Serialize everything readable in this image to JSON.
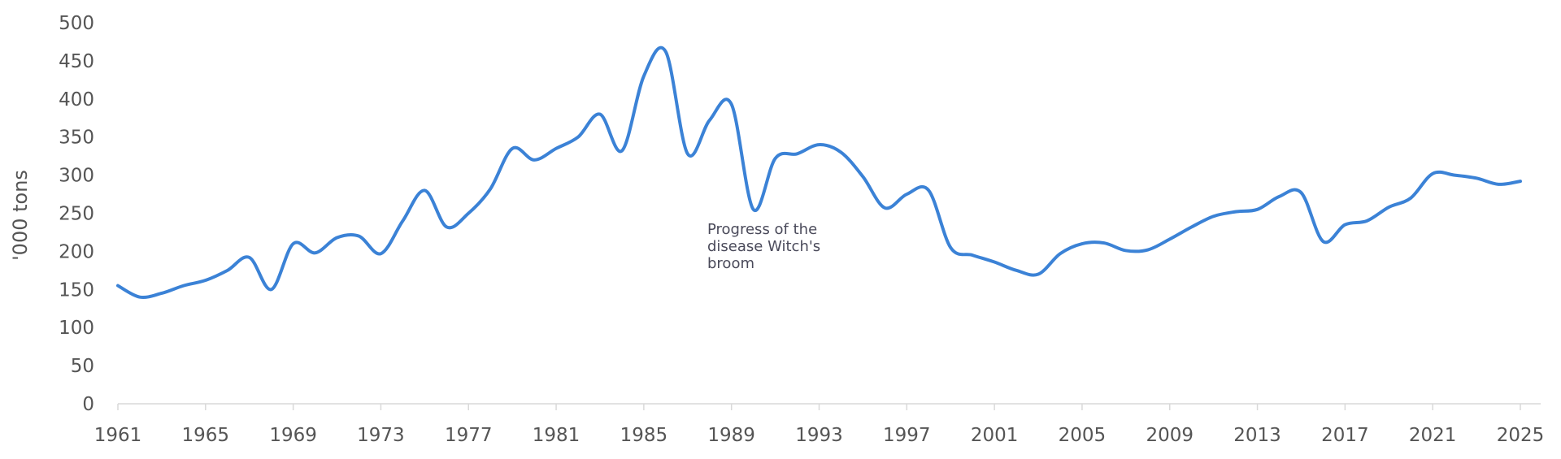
{
  "chart_data": {
    "type": "line",
    "title": "",
    "xlabel": "",
    "ylabel": "'000 tons",
    "xlim": [
      1961,
      2025
    ],
    "ylim": [
      0,
      500
    ],
    "x_ticks": [
      "1961",
      "1965",
      "1969",
      "1973",
      "1977",
      "1981",
      "1985",
      "1989",
      "1993",
      "1997",
      "2001",
      "2005",
      "2009",
      "2013",
      "2017",
      "2021",
      "2025"
    ],
    "y_ticks": [
      "0",
      "50",
      "100",
      "150",
      "200",
      "250",
      "300",
      "350",
      "400",
      "450",
      "500"
    ],
    "grid": false,
    "color": "#3b82d6",
    "annotation": "Progress of the\ndisease Witch's\nbroom",
    "series": [
      {
        "x": [
          1961,
          1962,
          1963,
          1964,
          1965,
          1966,
          1967,
          1968,
          1969,
          1970,
          1971,
          1972,
          1973,
          1974,
          1975,
          1976,
          1977,
          1978,
          1979,
          1980,
          1981,
          1982,
          1983,
          1984,
          1985,
          1986,
          1987,
          1988,
          1989,
          1990,
          1991,
          1992,
          1993,
          1994,
          1995,
          1996,
          1997,
          1998,
          1999,
          2000,
          2001,
          2002,
          2003,
          2004,
          2005,
          2006,
          2007,
          2008,
          2009,
          2010,
          2011,
          2012,
          2013,
          2014,
          2015,
          2016,
          2017,
          2018,
          2019,
          2020,
          2021,
          2022,
          2023,
          2024,
          2025
        ],
        "values": [
          155,
          140,
          145,
          155,
          162,
          175,
          192,
          150,
          210,
          198,
          218,
          220,
          197,
          240,
          280,
          232,
          250,
          282,
          335,
          320,
          335,
          350,
          380,
          332,
          430,
          462,
          328,
          372,
          393,
          255,
          322,
          328,
          340,
          330,
          298,
          257,
          275,
          280,
          205,
          195,
          186,
          175,
          170,
          197,
          210,
          211,
          201,
          202,
          216,
          232,
          246,
          252,
          255,
          272,
          277,
          213,
          235,
          240,
          258,
          270,
          302,
          300,
          296,
          288,
          292
        ]
      }
    ]
  }
}
